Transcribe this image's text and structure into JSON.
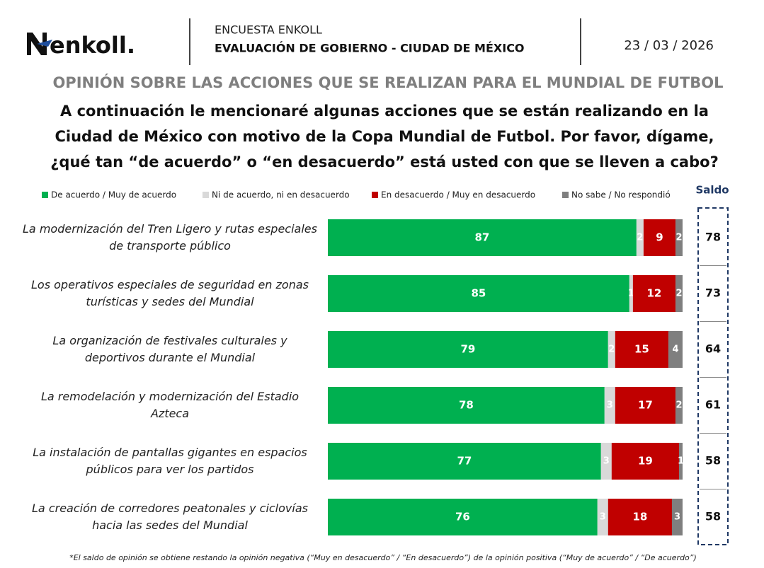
{
  "header": {
    "logo": "enkoll.",
    "survey": "ENCUESTA ENKOLL",
    "report": "EVALUACIÓN DE GOBIERNO - CIUDAD DE MÉXICO",
    "date": "23 / 03 / 2026"
  },
  "chart_data": {
    "type": "bar",
    "orientation": "horizontal",
    "stacked": true,
    "title": "OPINIÓN SOBRE LAS ACCIONES QUE SE REALIZAN PARA EL MUNDIAL DE FUTBOL",
    "subtitle": [
      "A continuación le mencionaré algunas acciones que se están realizando en la",
      "Ciudad de México con motivo de la Copa Mundial de Futbol. Por favor, dígame,",
      "¿qué tan “de acuerdo” o “en desacuerdo” está usted con que se lleven a cabo?"
    ],
    "categories": [
      "La modernización del Tren Ligero y rutas especiales de transporte público",
      "Los operativos especiales de seguridad en zonas turísticas y sedes del Mundial",
      "La organización de festivales culturales y deportivos durante el Mundial",
      "La remodelación y modernización del Estadio Azteca",
      "La instalación de pantallas gigantes en espacios públicos para ver los partidos",
      "La creación de corredores peatonales y ciclovías hacia las sedes del Mundial"
    ],
    "series": [
      {
        "name": "De acuerdo / Muy de acuerdo",
        "color": "#00b050",
        "values": [
          87,
          85,
          79,
          78,
          77,
          76
        ]
      },
      {
        "name": "Ni de acuerdo, ni en desacuerdo",
        "color": "#d9d9d9",
        "values": [
          2,
          1,
          2,
          3,
          3,
          3
        ]
      },
      {
        "name": "En desacuerdo / Muy en desacuerdo",
        "color": "#c00000",
        "values": [
          9,
          12,
          15,
          17,
          19,
          18
        ]
      },
      {
        "name": "No sabe / No respondió",
        "color": "#7f7f7f",
        "values": [
          2,
          2,
          4,
          2,
          1,
          3
        ]
      }
    ],
    "xlim": [
      0,
      100
    ],
    "saldo": {
      "title": "Saldo",
      "values": [
        78,
        73,
        64,
        61,
        58,
        58
      ]
    },
    "note": "*El saldo de opinión se obtiene restando la opinión negativa (“Muy en desacuerdo” / “En desacuerdo”) de la opinión positiva (“Muy de acuerdo” / “De acuerdo”)"
  }
}
